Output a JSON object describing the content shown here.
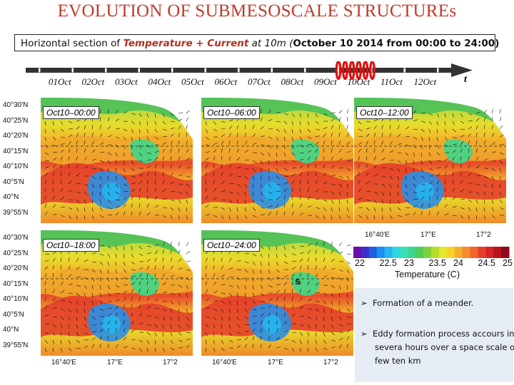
{
  "title": "EVOLUTION OF SUBMESOSCALE STRUCTUREs",
  "subtitle": {
    "prefix": "Horizontal section of ",
    "highlight": "Temperature + Current",
    "middle": " at 10m (",
    "date": "October 10 2014 from 00:00 to 24:00",
    "suffix": ")"
  },
  "timeline": {
    "dates": [
      "01Oct",
      "02Oct",
      "03Oct",
      "04Oct",
      "05Oct",
      "06Oct",
      "07Oct",
      "08Oct",
      "09Oct",
      "10Oct",
      "11Oct",
      "12Oct"
    ],
    "axis_label": "t"
  },
  "panels": [
    {
      "label": "Oct10–00:00"
    },
    {
      "label": "Oct10–06:00"
    },
    {
      "label": "Oct10–12:00"
    },
    {
      "label": "Oct10–18:00"
    },
    {
      "label": "Oct10–24:00"
    }
  ],
  "lat_labels": [
    "40°30'N",
    "40°25'N",
    "40°20'N",
    "40°15'N",
    "40°10'N",
    "40°5'N",
    "40°N",
    "39°55'N"
  ],
  "lat_labels_row2": [
    "40°30'N",
    "40°25'N",
    "40°20'N",
    "40°15'N",
    "40°10'N",
    "40°5'N",
    "40°N",
    "39°55'N"
  ],
  "lon_labels": [
    "16°40'E",
    "17°E",
    "17°2"
  ],
  "lon_labels_left": [
    "16°40'E",
    "17°E",
    "17°2"
  ],
  "lon_labels_left_a": "16°40'E",
  "lon_labels_bottom_left": [
    "16°40'E",
    "17°E",
    "17°2"
  ],
  "colorbar": {
    "ticks": [
      "22",
      "22.5",
      "23",
      "23.5",
      "24",
      "24.5",
      "25"
    ],
    "label": "Temperature (C)",
    "colors": [
      "#6a0dad",
      "#3b2fc9",
      "#1f5fe0",
      "#1d8ff0",
      "#23b6f0",
      "#2fd6e0",
      "#36e0b5",
      "#3ed68a",
      "#4ccd5c",
      "#7fd13a",
      "#b5dd2c",
      "#e6e62a",
      "#f6d22a",
      "#f7ad2b",
      "#f58a2b",
      "#f0652b",
      "#e6402a",
      "#d52323",
      "#b8141e",
      "#8f0a18"
    ]
  },
  "notes": [
    {
      "bullet": "➢",
      "text": "Formation of a meander."
    },
    {
      "bullet": "➢",
      "text": "Eddy formation process accours in severa hours over a space scale of few ten km"
    }
  ],
  "annotation_s": "s"
}
